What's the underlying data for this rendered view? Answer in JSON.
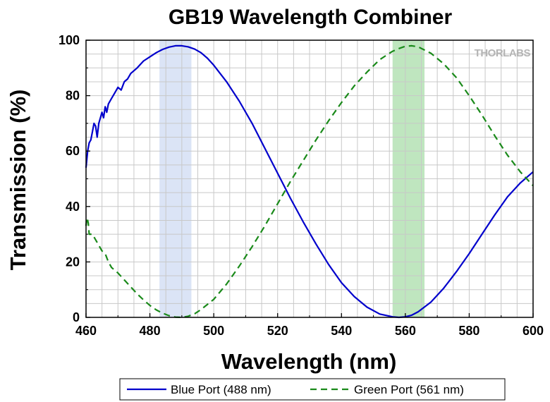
{
  "brand": "THORLABS",
  "chart_data": {
    "type": "line",
    "title": "GB19 Wavelength Combiner",
    "xlabel": "Wavelength (nm)",
    "ylabel": "Transmission (%)",
    "xlim": [
      460,
      600
    ],
    "ylim": [
      0,
      100
    ],
    "xticks": [
      460,
      480,
      500,
      520,
      540,
      560,
      580,
      600
    ],
    "yticks": [
      0,
      20,
      40,
      60,
      80,
      100
    ],
    "grid": true,
    "legend_position": "bottom",
    "colors": {
      "blue": "#0000cc",
      "green": "#1a8a1a",
      "blue_band": "#dbe4f6",
      "green_band": "#bfe6bf",
      "grid": "#c8c8c8"
    },
    "bands": [
      {
        "x0": 483,
        "x1": 493,
        "color": "#dbe4f6"
      },
      {
        "x0": 556,
        "x1": 566,
        "color": "#bfe6bf"
      }
    ],
    "series": [
      {
        "name": "Blue Port (488 nm)",
        "style": "solid",
        "color": "#0000cc",
        "x": [
          460,
          460.5,
          461,
          461.5,
          462,
          462.5,
          463,
          463.5,
          464,
          464.5,
          465,
          465.5,
          466,
          466.5,
          467,
          468,
          469,
          470,
          471,
          472,
          473,
          474,
          476,
          478,
          480,
          482,
          484,
          486,
          488,
          490,
          492,
          494,
          496,
          498,
          500,
          504,
          508,
          512,
          516,
          520,
          524,
          528,
          532,
          536,
          540,
          544,
          548,
          552,
          556,
          558,
          560,
          562,
          564,
          568,
          572,
          576,
          580,
          584,
          588,
          592,
          596,
          600
        ],
        "y": [
          54,
          60,
          63,
          64,
          67,
          70,
          69,
          65,
          70,
          72,
          74,
          72,
          76,
          74,
          77,
          79,
          81,
          83,
          82,
          85,
          86,
          88,
          90,
          92.5,
          94,
          95.5,
          96.7,
          97.5,
          98,
          98,
          97.6,
          96.8,
          95.5,
          93.5,
          91,
          85,
          78,
          70,
          61,
          52,
          43,
          34.5,
          26.5,
          19,
          12.5,
          7.5,
          3.7,
          1.2,
          0.2,
          0,
          0.2,
          0.8,
          2,
          5.5,
          10.5,
          16.5,
          23,
          30,
          37,
          43.5,
          48.5,
          52.5
        ]
      },
      {
        "name": "Green Port (561 nm)",
        "style": "dashed",
        "color": "#1a8a1a",
        "x": [
          460,
          460.3,
          460.7,
          461,
          462,
          463,
          464,
          465,
          466,
          467,
          468,
          470,
          472,
          474,
          476,
          478,
          480,
          482,
          484,
          486,
          488,
          490,
          492,
          494,
          496,
          500,
          504,
          508,
          512,
          516,
          520,
          524,
          528,
          532,
          536,
          540,
          544,
          548,
          552,
          556,
          558,
          560,
          562,
          564,
          568,
          572,
          576,
          580,
          584,
          588,
          592,
          596,
          600
        ],
        "y": [
          33,
          36,
          34,
          30,
          30,
          28,
          26,
          24,
          23,
          20,
          18,
          16,
          13.5,
          11,
          8.5,
          6.3,
          4.3,
          2.7,
          1.5,
          0.6,
          0.1,
          0,
          0.4,
          1.3,
          2.8,
          6.5,
          12,
          18.5,
          25.5,
          33,
          41,
          49,
          56.5,
          64,
          71,
          77.5,
          83.5,
          88.5,
          93,
          96,
          97,
          97.8,
          98,
          97.6,
          95.3,
          91.5,
          86.5,
          80,
          73,
          65.5,
          58.5,
          52.5,
          47.5
        ]
      }
    ]
  }
}
